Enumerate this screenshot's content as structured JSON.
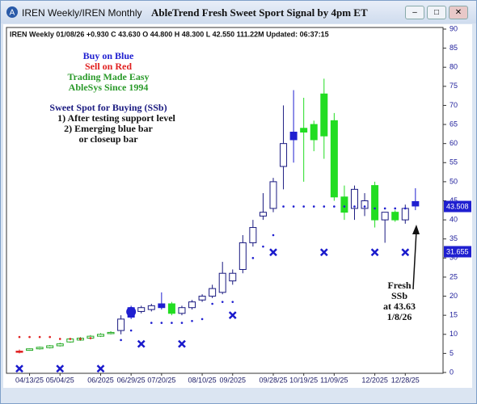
{
  "window": {
    "tabs": "IREN Weekly/IREN Monthly",
    "title": "AbleTrend Fresh Sweet Sport Signal by 4pm ET"
  },
  "chart_data": {
    "type": "candlestick",
    "subtitle": "IREN  Weekly 01/08/26 +0.930 C 43.630 O 44.800 H 48.300 L 42.550 111.22M Updated: 06:37:15",
    "categories": [
      null,
      "04/13/25",
      null,
      null,
      "05/04/25",
      null,
      null,
      null,
      "06/2025",
      null,
      null,
      "06/29/25",
      null,
      null,
      "07/20/25",
      null,
      null,
      null,
      "08/10/25",
      null,
      null,
      "09/2025",
      null,
      null,
      null,
      "09/28/25",
      null,
      null,
      "10/19/25",
      null,
      null,
      "11/09/25",
      null,
      null,
      null,
      "12/2025",
      null,
      null,
      "12/28/25",
      null
    ],
    "open": [
      5.6,
      5.8,
      6.2,
      6.5,
      7.0,
      8.0,
      8.5,
      9.0,
      9.5,
      10.2,
      11,
      14.5,
      16,
      16.5,
      17,
      18,
      15.5,
      17,
      19,
      20,
      21,
      24,
      27,
      34,
      41,
      43,
      54,
      61,
      63,
      65,
      73,
      66,
      46,
      43,
      43,
      49,
      40,
      42,
      40,
      44.8
    ],
    "high": [
      6,
      6.3,
      6.8,
      7.2,
      7.8,
      9.0,
      9.3,
      9.8,
      10.3,
      10.8,
      15,
      17.5,
      17.5,
      18,
      21,
      18.5,
      17.5,
      19,
      20.5,
      23,
      29,
      27,
      36,
      40,
      47,
      51,
      70,
      74,
      72,
      66,
      77,
      68,
      49,
      49,
      47,
      50,
      42,
      42.5,
      44,
      48.3
    ],
    "low": [
      5,
      5.7,
      6.0,
      6.3,
      6.8,
      7.8,
      8.3,
      8.8,
      9.3,
      10.0,
      10,
      14,
      15.5,
      16,
      16.5,
      15,
      15,
      16.5,
      18.5,
      19.5,
      20.5,
      23,
      26,
      33,
      40,
      42,
      48,
      55,
      50,
      58,
      56,
      45,
      40,
      40,
      41,
      38,
      34,
      39.5,
      39,
      42.55
    ],
    "close": [
      5.3,
      6.2,
      6.6,
      7.0,
      7.5,
      8.8,
      9.0,
      9.5,
      10.0,
      10.5,
      14,
      17,
      17,
      17.5,
      18,
      15.5,
      17,
      18.5,
      20,
      22,
      26,
      26,
      34,
      38,
      42,
      50,
      60,
      63,
      64,
      61,
      62,
      46,
      42,
      48,
      45,
      40,
      42,
      40,
      43,
      43.63
    ],
    "colors": [
      "#e02020",
      "#22aa22",
      "#22aa22",
      "#22aa22",
      "#22aa22",
      "#22aa22",
      "#22aa22",
      "#22aa22",
      "#22aa22",
      "#22aa22",
      "#1a1a80",
      "#1f1fd0",
      "#1a1a80",
      "#1a1a80",
      "#1f1fd0",
      "#22dd22",
      "#1a1a80",
      "#1a1a80",
      "#1a1a80",
      "#1a1a80",
      "#1a1a80",
      "#1a1a80",
      "#1a1a80",
      "#1a1a80",
      "#1a1a80",
      "#1a1a80",
      "#1a1a80",
      "#1f1fd0",
      "#22dd22",
      "#22dd22",
      "#22dd22",
      "#22dd22",
      "#22dd22",
      "#1a1a80",
      "#1a1a80",
      "#22dd22",
      "#1a1a80",
      "#22dd22",
      "#1a1a80",
      "#1f1fd0"
    ],
    "filled": [
      true,
      false,
      false,
      false,
      false,
      false,
      false,
      false,
      false,
      false,
      false,
      true,
      false,
      false,
      true,
      true,
      false,
      false,
      false,
      false,
      false,
      false,
      false,
      false,
      false,
      false,
      false,
      true,
      true,
      true,
      true,
      true,
      true,
      false,
      false,
      true,
      false,
      true,
      false,
      true
    ],
    "stops": [
      9.3,
      9.3,
      9.3,
      9.3,
      8.8,
      8.8,
      8.8,
      9,
      null,
      null,
      8.5,
      11,
      null,
      13,
      13,
      13,
      13,
      13.5,
      14,
      18,
      18.5,
      18.5,
      null,
      30,
      33,
      36,
      43.5,
      43.5,
      43.5,
      43.5,
      43.5,
      43.5,
      43.5,
      43.5,
      43.5,
      43,
      43,
      43,
      43,
      null
    ],
    "stop_colors": [
      "#e02020",
      "#e02020",
      "#e02020",
      "#e02020",
      "#e02020",
      "#e02020",
      "#e02020",
      "#e02020",
      null,
      null,
      "#1f1fd0",
      "#1f1fd0",
      null,
      "#1f1fd0",
      "#1f1fd0",
      "#1f1fd0",
      "#1f1fd0",
      "#1f1fd0",
      "#1f1fd0",
      "#1f1fd0",
      "#1f1fd0",
      "#1f1fd0",
      null,
      "#1f1fd0",
      "#1f1fd0",
      "#1f1fd0",
      "#1f1fd0",
      "#1f1fd0",
      "#1f1fd0",
      "#1f1fd0",
      "#1f1fd0",
      "#1f1fd0",
      "#1f1fd0",
      "#1f1fd0",
      "#1f1fd0",
      "#1f1fd0",
      "#1f1fd0",
      "#1f1fd0",
      "#1f1fd0",
      null
    ],
    "signals": [
      1,
      null,
      null,
      null,
      1,
      null,
      null,
      null,
      1,
      null,
      null,
      null,
      7.5,
      null,
      null,
      null,
      7.5,
      null,
      null,
      null,
      null,
      15,
      null,
      null,
      null,
      31.5,
      null,
      null,
      null,
      null,
      31.5,
      null,
      null,
      null,
      null,
      31.5,
      null,
      null,
      31.5,
      null
    ],
    "signal_color": "#1a1acc",
    "ssb_marker": {
      "index": 11,
      "value": 15.9
    },
    "price_markers": [
      43.508,
      31.655
    ],
    "ylim": [
      0,
      90
    ],
    "yticks": [
      0,
      5,
      10,
      15,
      20,
      25,
      30,
      35,
      40,
      45,
      50,
      55,
      60,
      65,
      70,
      75,
      80,
      85,
      90
    ],
    "annotations": {
      "legend": [
        {
          "text": "Buy on Blue",
          "color": "#1f1fd0"
        },
        {
          "text": "Sell on Red",
          "color": "#e02020"
        },
        {
          "text": "Trading Made Easy",
          "color": "#2a9a2a"
        },
        {
          "text": "AbleSys Since 1994",
          "color": "#2a9a2a"
        }
      ],
      "ssb": [
        {
          "text": "Sweet Spot for Buying (SSb)",
          "color": "#1a1a80"
        },
        {
          "text": "1) After testing support level",
          "color": "#111111"
        },
        {
          "text": "2) Emerging blue bar",
          "color": "#111111"
        },
        {
          "text": "or closeup bar",
          "color": "#111111"
        }
      ],
      "fresh": [
        "Fresh",
        "SSb",
        "at 43.63",
        "1/8/26"
      ]
    }
  }
}
